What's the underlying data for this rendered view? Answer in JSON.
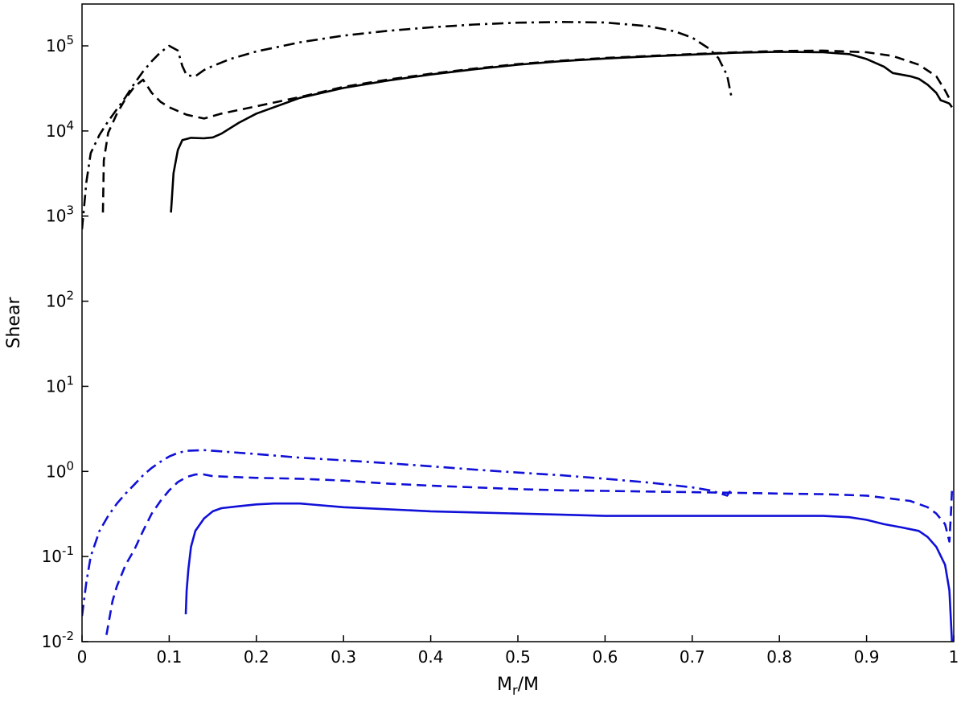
{
  "chart_data": {
    "type": "line",
    "title": "",
    "xlabel": "M",
    "xlabel_sub": "r",
    "xlabel_suffix": "/M",
    "ylabel": "Shear",
    "xlim": [
      0,
      1
    ],
    "ylim": [
      0.01,
      300000
    ],
    "yscale": "log",
    "grid": false,
    "legend": "none",
    "x_ticks": [
      {
        "value": 0,
        "label": "0"
      },
      {
        "value": 0.1,
        "label": "0.1"
      },
      {
        "value": 0.2,
        "label": "0.2"
      },
      {
        "value": 0.3,
        "label": "0.3"
      },
      {
        "value": 0.4,
        "label": "0.4"
      },
      {
        "value": 0.5,
        "label": "0.5"
      },
      {
        "value": 0.6,
        "label": "0.6"
      },
      {
        "value": 0.7,
        "label": "0.7"
      },
      {
        "value": 0.8,
        "label": "0.8"
      },
      {
        "value": 0.9,
        "label": "0.9"
      },
      {
        "value": 1,
        "label": "1"
      }
    ],
    "y_ticks": [
      {
        "value": 0.01,
        "base": "10",
        "exp": "-2"
      },
      {
        "value": 0.1,
        "base": "10",
        "exp": "-1"
      },
      {
        "value": 1,
        "base": "10",
        "exp": "0"
      },
      {
        "value": 10,
        "base": "10",
        "exp": "1"
      },
      {
        "value": 100,
        "base": "10",
        "exp": "2"
      },
      {
        "value": 1000,
        "base": "10",
        "exp": "3"
      },
      {
        "value": 10000,
        "base": "10",
        "exp": "4"
      },
      {
        "value": 100000,
        "base": "10",
        "exp": "5"
      }
    ],
    "series": [
      {
        "color": "#000000",
        "style": "solid",
        "points": [
          [
            0.102,
            1100
          ],
          [
            0.105,
            3200
          ],
          [
            0.11,
            6000
          ],
          [
            0.115,
            7800
          ],
          [
            0.125,
            8300
          ],
          [
            0.14,
            8200
          ],
          [
            0.15,
            8400
          ],
          [
            0.16,
            9300
          ],
          [
            0.18,
            12500
          ],
          [
            0.2,
            16000
          ],
          [
            0.25,
            24500
          ],
          [
            0.3,
            32000
          ],
          [
            0.35,
            39000
          ],
          [
            0.4,
            46000
          ],
          [
            0.45,
            53000
          ],
          [
            0.5,
            60000
          ],
          [
            0.55,
            66000
          ],
          [
            0.6,
            71000
          ],
          [
            0.65,
            75000
          ],
          [
            0.7,
            79000
          ],
          [
            0.75,
            83000
          ],
          [
            0.8,
            85000
          ],
          [
            0.85,
            84000
          ],
          [
            0.88,
            80000
          ],
          [
            0.9,
            70000
          ],
          [
            0.92,
            57000
          ],
          [
            0.93,
            48000
          ],
          [
            0.95,
            44000
          ],
          [
            0.96,
            41000
          ],
          [
            0.97,
            35000
          ],
          [
            0.98,
            28000
          ],
          [
            0.985,
            23000
          ],
          [
            0.99,
            22000
          ],
          [
            0.995,
            21000
          ],
          [
            0.998,
            19000
          ]
        ]
      },
      {
        "color": "#000000",
        "style": "dashed",
        "points": [
          [
            0.024,
            1100
          ],
          [
            0.025,
            4500
          ],
          [
            0.03,
            9500
          ],
          [
            0.04,
            16000
          ],
          [
            0.05,
            24000
          ],
          [
            0.06,
            33000
          ],
          [
            0.07,
            40000
          ],
          [
            0.08,
            28000
          ],
          [
            0.09,
            22000
          ],
          [
            0.1,
            19000
          ],
          [
            0.12,
            15500
          ],
          [
            0.14,
            14000
          ],
          [
            0.16,
            16000
          ],
          [
            0.2,
            19500
          ],
          [
            0.25,
            25000
          ],
          [
            0.3,
            33000
          ],
          [
            0.35,
            40000
          ],
          [
            0.4,
            47000
          ],
          [
            0.45,
            54000
          ],
          [
            0.5,
            61000
          ],
          [
            0.55,
            67000
          ],
          [
            0.6,
            72000
          ],
          [
            0.65,
            76000
          ],
          [
            0.7,
            80000
          ],
          [
            0.75,
            84000
          ],
          [
            0.8,
            87000
          ],
          [
            0.85,
            88000
          ],
          [
            0.9,
            84000
          ],
          [
            0.93,
            76000
          ],
          [
            0.96,
            60000
          ],
          [
            0.98,
            44000
          ],
          [
            0.99,
            30000
          ],
          [
            0.995,
            24000
          ],
          [
            0.998,
            22000
          ]
        ]
      },
      {
        "color": "#000000",
        "style": "dashdot",
        "points": [
          [
            0.0,
            700
          ],
          [
            0.005,
            2500
          ],
          [
            0.01,
            5500
          ],
          [
            0.02,
            9000
          ],
          [
            0.03,
            13000
          ],
          [
            0.04,
            18000
          ],
          [
            0.05,
            25000
          ],
          [
            0.06,
            36000
          ],
          [
            0.07,
            50000
          ],
          [
            0.08,
            66000
          ],
          [
            0.09,
            84000
          ],
          [
            0.1,
            100000
          ],
          [
            0.11,
            88000
          ],
          [
            0.115,
            58000
          ],
          [
            0.12,
            45000
          ],
          [
            0.13,
            44000
          ],
          [
            0.14,
            52000
          ],
          [
            0.15,
            58000
          ],
          [
            0.17,
            70000
          ],
          [
            0.2,
            86000
          ],
          [
            0.25,
            110000
          ],
          [
            0.3,
            132000
          ],
          [
            0.35,
            150000
          ],
          [
            0.4,
            165000
          ],
          [
            0.45,
            178000
          ],
          [
            0.5,
            187000
          ],
          [
            0.55,
            191000
          ],
          [
            0.6,
            188000
          ],
          [
            0.65,
            170000
          ],
          [
            0.68,
            148000
          ],
          [
            0.7,
            125000
          ],
          [
            0.72,
            92000
          ],
          [
            0.73,
            72000
          ],
          [
            0.74,
            45000
          ],
          [
            0.745,
            25000
          ]
        ]
      },
      {
        "color": "#1010d8",
        "style": "solid",
        "points": [
          [
            0.119,
            0.021
          ],
          [
            0.12,
            0.04
          ],
          [
            0.122,
            0.07
          ],
          [
            0.125,
            0.13
          ],
          [
            0.13,
            0.2
          ],
          [
            0.14,
            0.28
          ],
          [
            0.15,
            0.34
          ],
          [
            0.16,
            0.37
          ],
          [
            0.18,
            0.39
          ],
          [
            0.2,
            0.41
          ],
          [
            0.22,
            0.42
          ],
          [
            0.25,
            0.42
          ],
          [
            0.3,
            0.38
          ],
          [
            0.35,
            0.36
          ],
          [
            0.4,
            0.34
          ],
          [
            0.45,
            0.33
          ],
          [
            0.5,
            0.32
          ],
          [
            0.55,
            0.31
          ],
          [
            0.6,
            0.3
          ],
          [
            0.65,
            0.3
          ],
          [
            0.7,
            0.3
          ],
          [
            0.75,
            0.3
          ],
          [
            0.8,
            0.3
          ],
          [
            0.85,
            0.3
          ],
          [
            0.88,
            0.29
          ],
          [
            0.9,
            0.27
          ],
          [
            0.92,
            0.24
          ],
          [
            0.94,
            0.22
          ],
          [
            0.96,
            0.2
          ],
          [
            0.97,
            0.17
          ],
          [
            0.98,
            0.13
          ],
          [
            0.99,
            0.08
          ],
          [
            0.995,
            0.04
          ],
          [
            0.998,
            0.01
          ]
        ]
      },
      {
        "color": "#1010d8",
        "style": "dashed",
        "points": [
          [
            0.028,
            0.012
          ],
          [
            0.035,
            0.03
          ],
          [
            0.04,
            0.045
          ],
          [
            0.05,
            0.08
          ],
          [
            0.06,
            0.12
          ],
          [
            0.07,
            0.2
          ],
          [
            0.08,
            0.32
          ],
          [
            0.09,
            0.45
          ],
          [
            0.1,
            0.6
          ],
          [
            0.11,
            0.75
          ],
          [
            0.12,
            0.86
          ],
          [
            0.13,
            0.92
          ],
          [
            0.14,
            0.92
          ],
          [
            0.15,
            0.88
          ],
          [
            0.2,
            0.84
          ],
          [
            0.25,
            0.82
          ],
          [
            0.3,
            0.78
          ],
          [
            0.35,
            0.72
          ],
          [
            0.4,
            0.68
          ],
          [
            0.45,
            0.65
          ],
          [
            0.5,
            0.62
          ],
          [
            0.55,
            0.6
          ],
          [
            0.6,
            0.59
          ],
          [
            0.65,
            0.58
          ],
          [
            0.7,
            0.57
          ],
          [
            0.75,
            0.56
          ],
          [
            0.8,
            0.55
          ],
          [
            0.85,
            0.54
          ],
          [
            0.9,
            0.52
          ],
          [
            0.95,
            0.45
          ],
          [
            0.97,
            0.38
          ],
          [
            0.98,
            0.32
          ],
          [
            0.99,
            0.24
          ],
          [
            0.995,
            0.15
          ],
          [
            0.997,
            0.35
          ],
          [
            0.998,
            0.6
          ]
        ]
      },
      {
        "color": "#1010d8",
        "style": "dashdot",
        "points": [
          [
            0.0,
            0.02
          ],
          [
            0.005,
            0.05
          ],
          [
            0.01,
            0.1
          ],
          [
            0.02,
            0.2
          ],
          [
            0.03,
            0.3
          ],
          [
            0.04,
            0.42
          ],
          [
            0.05,
            0.55
          ],
          [
            0.06,
            0.7
          ],
          [
            0.07,
            0.9
          ],
          [
            0.08,
            1.1
          ],
          [
            0.09,
            1.3
          ],
          [
            0.1,
            1.5
          ],
          [
            0.11,
            1.65
          ],
          [
            0.12,
            1.75
          ],
          [
            0.14,
            1.78
          ],
          [
            0.15,
            1.75
          ],
          [
            0.2,
            1.6
          ],
          [
            0.25,
            1.45
          ],
          [
            0.3,
            1.35
          ],
          [
            0.35,
            1.25
          ],
          [
            0.4,
            1.15
          ],
          [
            0.45,
            1.05
          ],
          [
            0.5,
            0.97
          ],
          [
            0.55,
            0.9
          ],
          [
            0.6,
            0.82
          ],
          [
            0.65,
            0.74
          ],
          [
            0.7,
            0.65
          ],
          [
            0.72,
            0.6
          ],
          [
            0.73,
            0.56
          ],
          [
            0.74,
            0.52
          ],
          [
            0.745,
            0.62
          ]
        ]
      }
    ]
  }
}
